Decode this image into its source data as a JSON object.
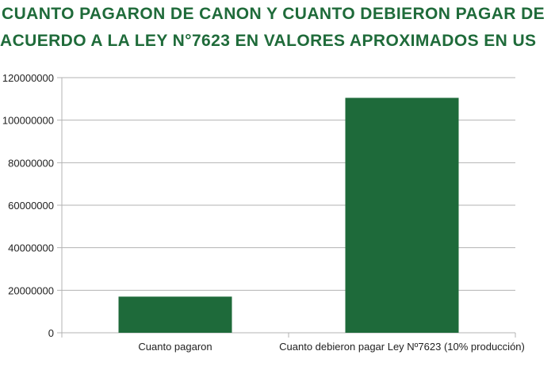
{
  "title_color": "#1f6b3a",
  "bar_color": "#1e6a3a",
  "grid_color": "#b3b3b3",
  "chart_data": {
    "type": "bar",
    "title_lines": [
      "CUANTO PAGARON DE CANON Y CUANTO DEBIERON PAGAR DE",
      "ACUERDO A LA LEY N°7623 EN VALORES APROXIMADOS EN US"
    ],
    "categories": [
      "Cuanto pagaron",
      "Cuanto debieron pagar Ley Nº7623  (10% producción)"
    ],
    "values": [
      17000000,
      110500000
    ],
    "ylim": [
      0,
      120000000
    ],
    "yticks": [
      0,
      20000000,
      40000000,
      60000000,
      80000000,
      100000000,
      120000000
    ],
    "ytick_labels": [
      "0",
      "20000000",
      "40000000",
      "60000000",
      "80000000",
      "100000000",
      "120000000"
    ],
    "grid": true,
    "legend": "none"
  }
}
